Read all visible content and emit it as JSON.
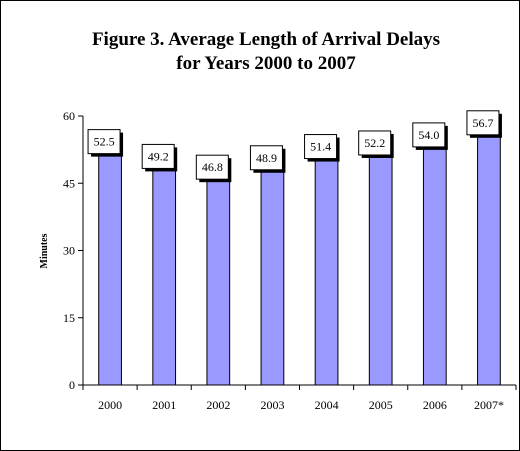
{
  "chart_data": {
    "type": "bar",
    "title_lines": [
      "Figure 3.  Average Length of Arrival Delays",
      "for Years 2000 to 2007"
    ],
    "xlabel": "",
    "ylabel": "Minutes",
    "categories": [
      "2000",
      "2001",
      "2002",
      "2003",
      "2004",
      "2005",
      "2006",
      "2007*"
    ],
    "values": [
      52.5,
      49.2,
      46.8,
      48.9,
      51.4,
      52.2,
      54.0,
      56.7
    ],
    "value_labels": [
      "52.5",
      "49.2",
      "46.8",
      "48.9",
      "51.4",
      "52.2",
      "54.0",
      "56.7"
    ],
    "ylim": [
      0,
      60
    ],
    "yticks": [
      0,
      15,
      30,
      45,
      60
    ],
    "grid": false,
    "legend": "none",
    "colors": {
      "bar_fill": "#9999ff",
      "bar_stroke": "#000000",
      "axis": "#000000",
      "label_box_fill": "#ffffff",
      "label_box_shadow": "#000000"
    }
  }
}
